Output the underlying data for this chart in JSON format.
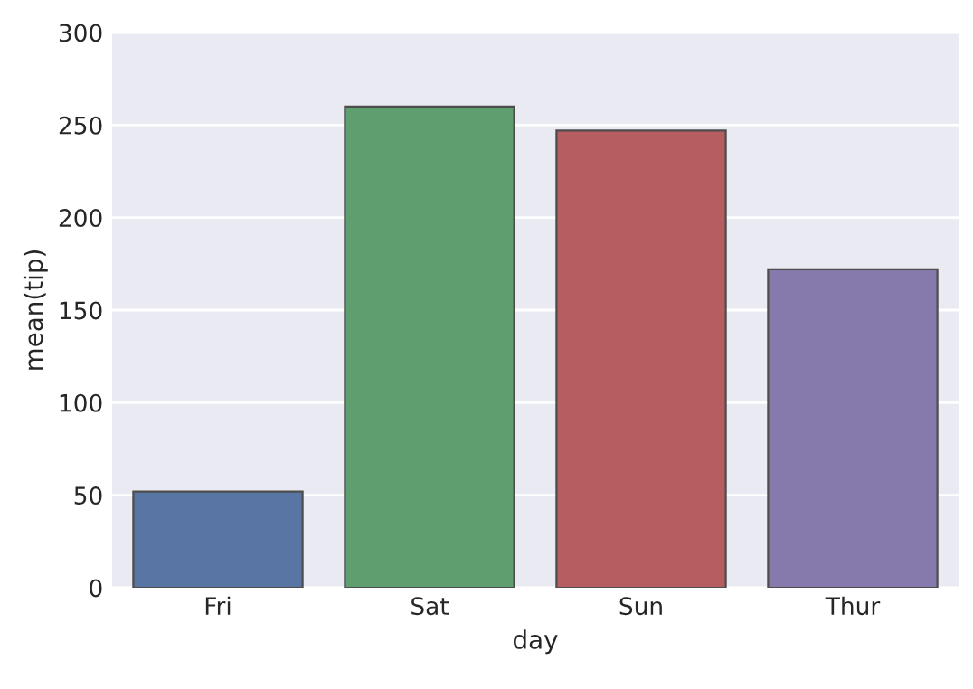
{
  "chart_data": {
    "type": "bar",
    "xlabel": "day",
    "ylabel": "mean(tip)",
    "categories": [
      "Fri",
      "Sat",
      "Sun",
      "Thur"
    ],
    "values": [
      52,
      260,
      247,
      172
    ],
    "colors": [
      "#5975a4",
      "#5f9e6e",
      "#b55d60",
      "#857aab"
    ],
    "ylim": [
      0,
      300
    ],
    "yticks": [
      0,
      50,
      100,
      150,
      200,
      250,
      300
    ],
    "grid": "y"
  }
}
